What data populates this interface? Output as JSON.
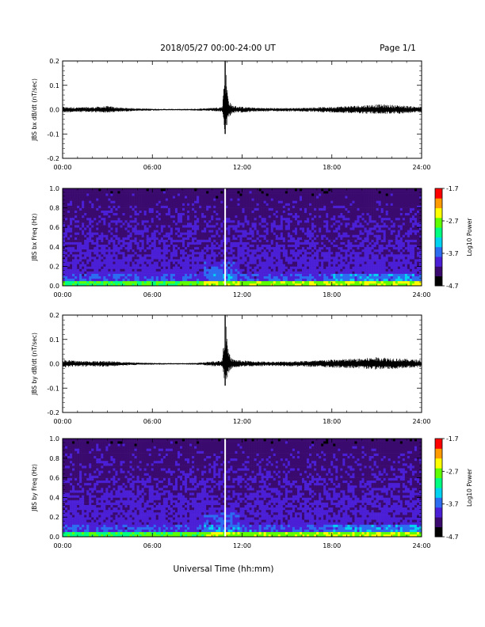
{
  "header": {
    "title": "2018/05/27  00:00-24:00 UT",
    "page": "Page 1/1"
  },
  "footer": {
    "xlabel": "Universal Time (hh:mm)"
  },
  "colors": {
    "trace": "#000000",
    "frame": "#000000",
    "colormap": [
      "#000000",
      "#3a0a6e",
      "#4b1fd6",
      "#2c6cf0",
      "#00d2f0",
      "#00ff80",
      "#60ff00",
      "#ffff00",
      "#ff9a00",
      "#ff0000"
    ]
  },
  "chart_data": [
    {
      "type": "line",
      "ylabel": "JBS bx dB/dt (nT/sec)",
      "xlim": [
        "00:00",
        "24:00"
      ],
      "xticks": [
        "00:00",
        "06:00",
        "12:00",
        "18:00",
        "24:00"
      ],
      "ylim": [
        -0.2,
        0.2
      ],
      "yticks": [
        "-0.2",
        "-0.1",
        "0.0",
        "0.1",
        "0.2"
      ],
      "series": [
        {
          "x": [
            "00:00",
            "01:00",
            "02:00",
            "03:00",
            "04:00",
            "05:00",
            "06:00",
            "07:00",
            "08:00",
            "09:00",
            "10:00",
            "10:40",
            "10:52",
            "11:05",
            "11:20",
            "12:00",
            "13:00",
            "14:00",
            "15:00",
            "16:00",
            "17:00",
            "18:00",
            "19:00",
            "20:00",
            "21:00",
            "22:00",
            "23:00",
            "24:00"
          ],
          "min": [
            -0.012,
            -0.01,
            -0.011,
            -0.013,
            -0.008,
            -0.006,
            -0.004,
            -0.003,
            -0.003,
            -0.004,
            -0.006,
            -0.01,
            -0.1,
            -0.035,
            -0.015,
            -0.012,
            -0.008,
            -0.007,
            -0.007,
            -0.008,
            -0.01,
            -0.012,
            -0.014,
            -0.016,
            -0.018,
            -0.018,
            -0.015,
            -0.012
          ],
          "max": [
            0.012,
            0.01,
            0.011,
            0.015,
            0.008,
            0.006,
            0.004,
            0.003,
            0.003,
            0.004,
            0.008,
            0.012,
            0.2,
            0.045,
            0.018,
            0.012,
            0.008,
            0.007,
            0.007,
            0.008,
            0.01,
            0.012,
            0.015,
            0.018,
            0.022,
            0.02,
            0.016,
            0.012
          ]
        }
      ]
    },
    {
      "type": "heatmap",
      "ylabel": "JBS bx Freq (Hz)",
      "xlim": [
        "00:00",
        "24:00"
      ],
      "xticks": [
        "00:00",
        "06:00",
        "12:00",
        "18:00",
        "24:00"
      ],
      "ylim": [
        0.0,
        1.0
      ],
      "yticks": [
        "0.0",
        "0.2",
        "0.4",
        "0.6",
        "0.8",
        "1.0"
      ],
      "colorbar_label": "Log10 Power",
      "colorbar_ticks": [
        "-1.7",
        "-2.7",
        "-3.7",
        "-4.7"
      ],
      "colorbar_range": [
        -4.7,
        -1.7
      ],
      "gap_at": "10:52"
    },
    {
      "type": "line",
      "ylabel": "JBS by dB/dt (nT/sec)",
      "xlim": [
        "00:00",
        "24:00"
      ],
      "xticks": [
        "00:00",
        "06:00",
        "12:00",
        "18:00",
        "24:00"
      ],
      "ylim": [
        -0.2,
        0.2
      ],
      "yticks": [
        "-0.2",
        "-0.1",
        "0.0",
        "0.1",
        "0.2"
      ],
      "series": [
        {
          "x": [
            "00:00",
            "01:00",
            "02:00",
            "03:00",
            "04:00",
            "05:00",
            "06:00",
            "07:00",
            "08:00",
            "09:00",
            "10:00",
            "10:40",
            "10:52",
            "11:05",
            "11:20",
            "12:00",
            "13:00",
            "14:00",
            "15:00",
            "16:00",
            "17:00",
            "18:00",
            "19:00",
            "20:00",
            "21:00",
            "22:00",
            "23:00",
            "24:00"
          ],
          "min": [
            -0.015,
            -0.012,
            -0.011,
            -0.012,
            -0.008,
            -0.005,
            -0.004,
            -0.003,
            -0.003,
            -0.004,
            -0.01,
            -0.012,
            -0.09,
            -0.04,
            -0.018,
            -0.012,
            -0.01,
            -0.009,
            -0.01,
            -0.012,
            -0.014,
            -0.016,
            -0.018,
            -0.02,
            -0.024,
            -0.022,
            -0.018,
            -0.015
          ],
          "max": [
            0.018,
            0.012,
            0.011,
            0.012,
            0.008,
            0.005,
            0.004,
            0.003,
            0.003,
            0.004,
            0.01,
            0.014,
            0.2,
            0.05,
            0.02,
            0.014,
            0.01,
            0.009,
            0.01,
            0.012,
            0.014,
            0.018,
            0.02,
            0.022,
            0.028,
            0.025,
            0.02,
            0.016
          ]
        }
      ]
    },
    {
      "type": "heatmap",
      "ylabel": "JBS by Freq (Hz)",
      "xlim": [
        "00:00",
        "24:00"
      ],
      "xticks": [
        "00:00",
        "06:00",
        "12:00",
        "18:00",
        "24:00"
      ],
      "ylim": [
        0.0,
        1.0
      ],
      "yticks": [
        "0.0",
        "0.2",
        "0.4",
        "0.6",
        "0.8",
        "1.0"
      ],
      "colorbar_label": "Log10 Power",
      "colorbar_ticks": [
        "-1.7",
        "-2.7",
        "-3.7",
        "-4.7"
      ],
      "colorbar_range": [
        -4.7,
        -1.7
      ],
      "gap_at": "10:52"
    }
  ]
}
